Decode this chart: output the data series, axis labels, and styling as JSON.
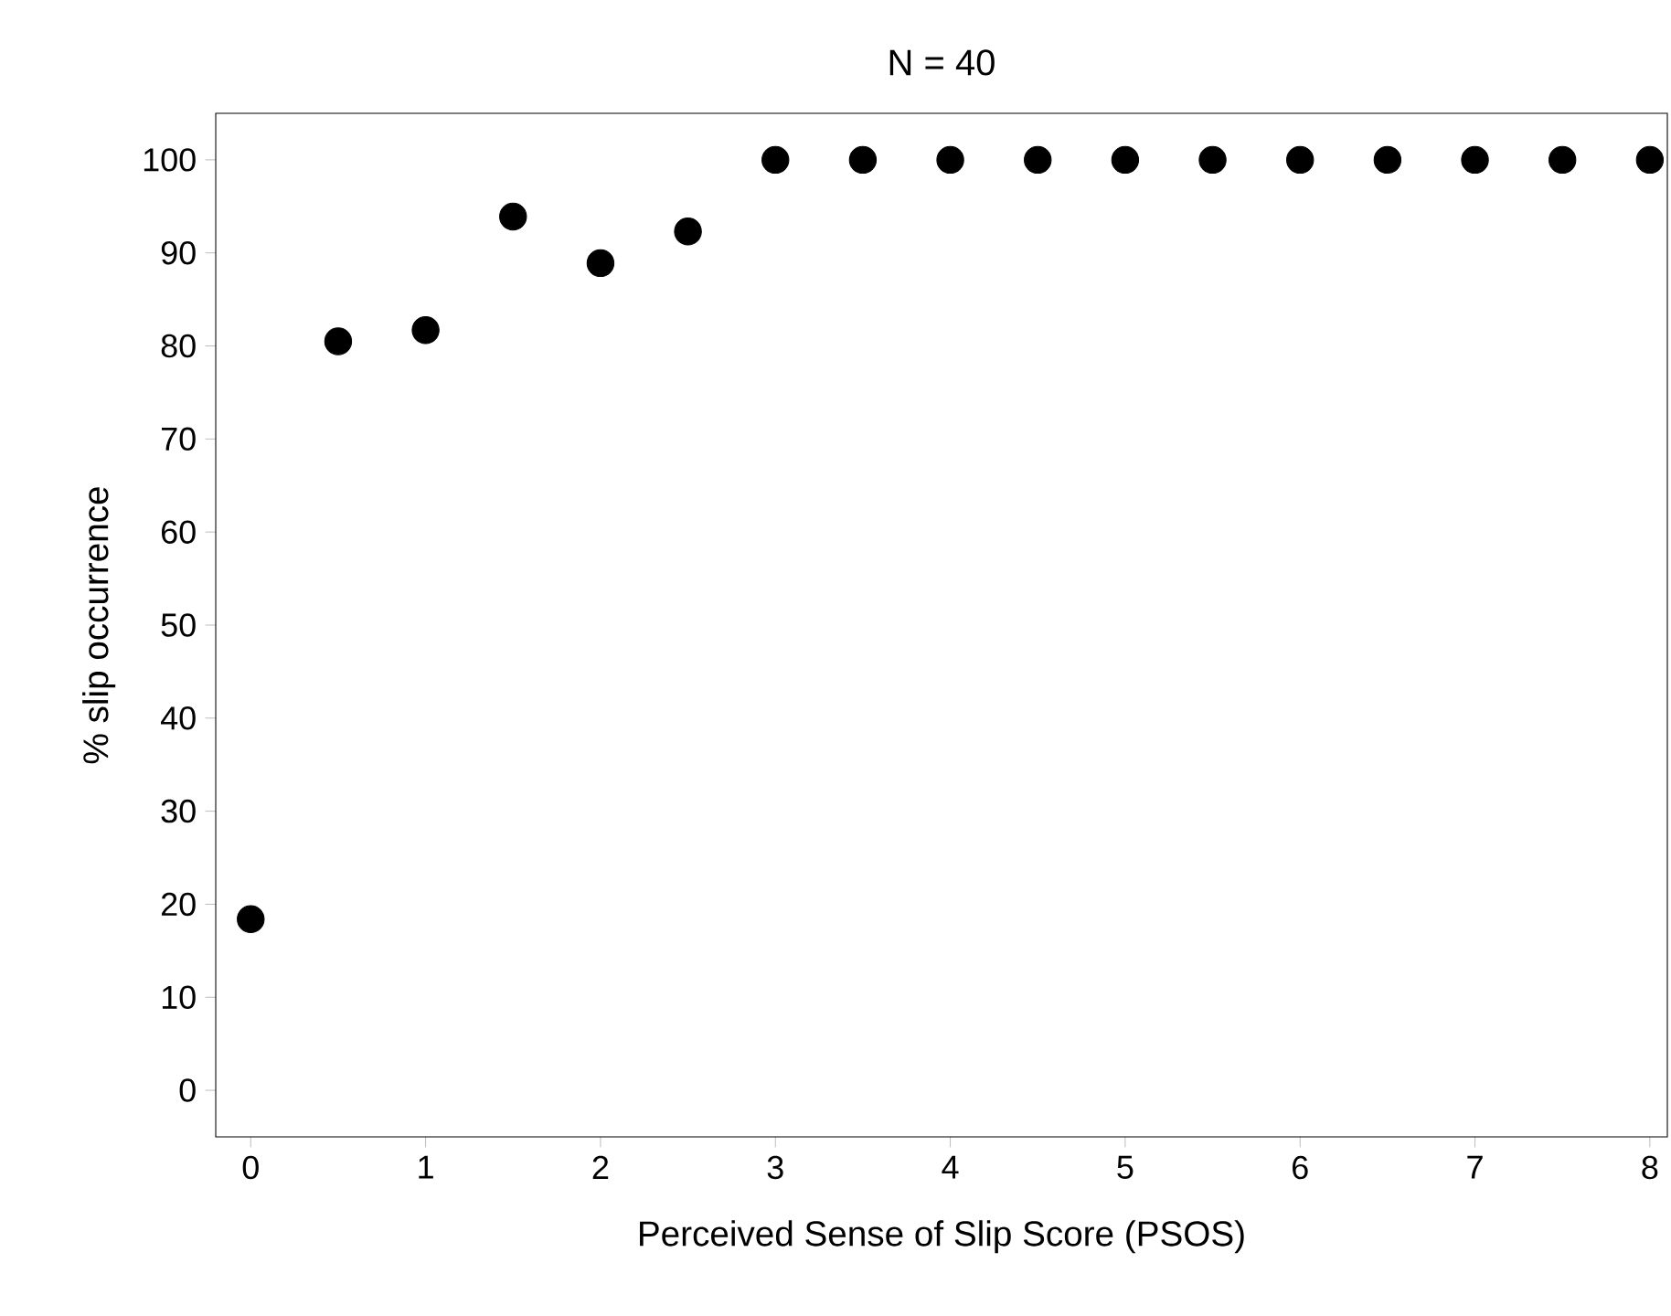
{
  "chart_data": {
    "type": "scatter",
    "title": "N = 40",
    "xlabel": "Perceived Sense of Slip Score (PSOS)",
    "ylabel": "% slip occurrence",
    "x": [
      0,
      0.5,
      1,
      1.5,
      2,
      2.5,
      3,
      3.5,
      4,
      4.5,
      5,
      5.5,
      6,
      6.5,
      7,
      7.5,
      8
    ],
    "values": [
      18.4,
      80.5,
      81.7,
      93.9,
      88.9,
      92.3,
      100,
      100,
      100,
      100,
      100,
      100,
      100,
      100,
      100,
      100,
      100
    ],
    "color": "#000000",
    "marker": "circle",
    "xlim": [
      -0.2,
      8.1
    ],
    "xticks": [
      0,
      1,
      2,
      3,
      4,
      5,
      6,
      7,
      8
    ],
    "ylim": [
      -5,
      105
    ],
    "yticks": [
      0,
      10,
      20,
      30,
      40,
      50,
      60,
      70,
      80,
      90,
      100
    ],
    "grid": false
  }
}
